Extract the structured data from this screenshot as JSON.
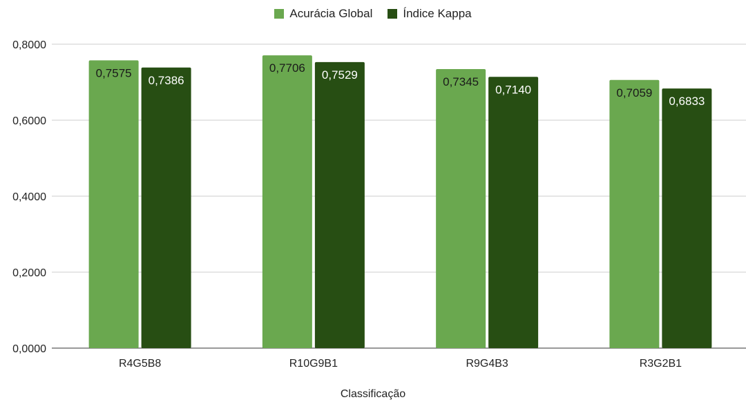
{
  "chart_data": {
    "type": "bar",
    "title": "",
    "xlabel": "Classificação",
    "ylabel": "",
    "categories": [
      "R4G5B8",
      "R10G9B1",
      "R9G4B3",
      "R3G2B1"
    ],
    "series": [
      {
        "name": "Acurácia Global",
        "color": "#6aa84f",
        "values": [
          0.7575,
          0.7706,
          0.7345,
          0.7059
        ],
        "labels": [
          "0,7575",
          "0,7706",
          "0,7345",
          "0,7059"
        ],
        "label_color": "#1a1a1a"
      },
      {
        "name": "Índice Kappa",
        "color": "#274e13",
        "values": [
          0.7386,
          0.7529,
          0.714,
          0.6833
        ],
        "labels": [
          "0,7386",
          "0,7529",
          "0,7140",
          "0,6833"
        ],
        "label_color": "#ffffff"
      }
    ],
    "ylim": [
      0,
      0.8
    ],
    "yticks": [
      0,
      0.2,
      0.4,
      0.6,
      0.8
    ],
    "ytick_labels": [
      "0,0000",
      "0,2000",
      "0,4000",
      "0,6000",
      "0,8000"
    ],
    "grid": true,
    "legend_position": "top-center"
  }
}
